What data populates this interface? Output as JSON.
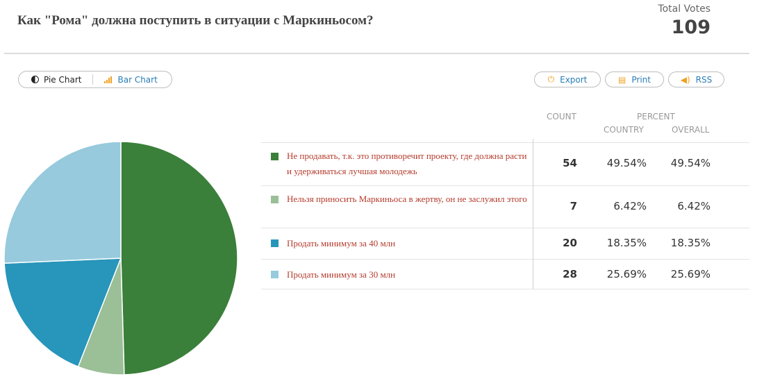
{
  "poll": {
    "title": "Как \"Рома\" должна поступить в ситуации с Маркиньосом?",
    "total_votes_label": "Total Votes",
    "total_votes": "109"
  },
  "toolbar": {
    "pie_label": "Pie Chart",
    "bar_label": "Bar Chart",
    "export_label": "Export",
    "print_label": "Print",
    "rss_label": "RSS"
  },
  "table": {
    "count_header": "COUNT",
    "percent_header": "PERCENT",
    "country_header": "COUNTRY",
    "overall_header": "OVERALL",
    "rows": [
      {
        "label": "Не продавать, т.к. это противоречит проекту, где должна расти и удерживаться лучшая молодежь",
        "count": "54",
        "country": "49.54%",
        "overall": "49.54%",
        "color": "#3a7f3a"
      },
      {
        "label": "Нельзя приносить Маркиньоса в жертву, он не заслужил этого",
        "count": "7",
        "country": "6.42%",
        "overall": "6.42%",
        "color": "#9bbf97"
      },
      {
        "label": "Продать минимум за 40 млн",
        "count": "20",
        "country": "18.35%",
        "overall": "18.35%",
        "color": "#2895bb"
      },
      {
        "label": "Продать минимум за 30 млн",
        "count": "28",
        "country": "25.69%",
        "overall": "25.69%",
        "color": "#96cadc"
      }
    ]
  },
  "chart_data": {
    "type": "pie",
    "categories": [
      "Не продавать, т.к. это противоречит проекту, где должна расти и удерживаться лучшая молодежь",
      "Нельзя приносить Маркиньоса в жертву, он не заслужил этого",
      "Продать минимум за 40 млн",
      "Продать минимум за 30 млн"
    ],
    "values": [
      54,
      7,
      20,
      28
    ],
    "colors": [
      "#3a7f3a",
      "#9bbf97",
      "#2895bb",
      "#96cadc"
    ]
  }
}
